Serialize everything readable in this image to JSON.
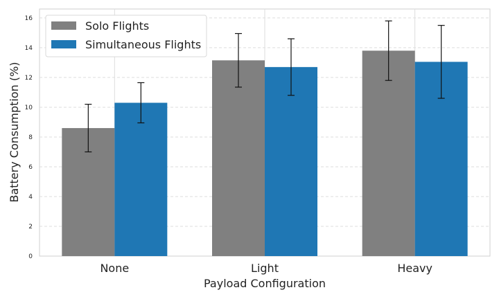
{
  "chart_data": {
    "type": "bar",
    "title": "",
    "xlabel": "Payload Configuration",
    "ylabel": "Battery Consumption (%)",
    "categories": [
      "None",
      "Light",
      "Heavy"
    ],
    "ylim": [
      0,
      16.6
    ],
    "yticks": [
      "0",
      "2",
      "4",
      "6",
      "8",
      "10",
      "12",
      "14",
      "16"
    ],
    "grid": true,
    "legend_position": "top-left",
    "series": [
      {
        "name": "Solo Flights",
        "color": "#808080",
        "values": [
          8.6,
          13.15,
          13.8
        ],
        "errors": [
          1.6,
          1.8,
          2.0
        ]
      },
      {
        "name": "Simultaneous Flights",
        "color": "#1f77b4",
        "values": [
          10.3,
          12.7,
          13.05
        ],
        "errors": [
          1.35,
          1.9,
          2.45
        ]
      }
    ]
  }
}
